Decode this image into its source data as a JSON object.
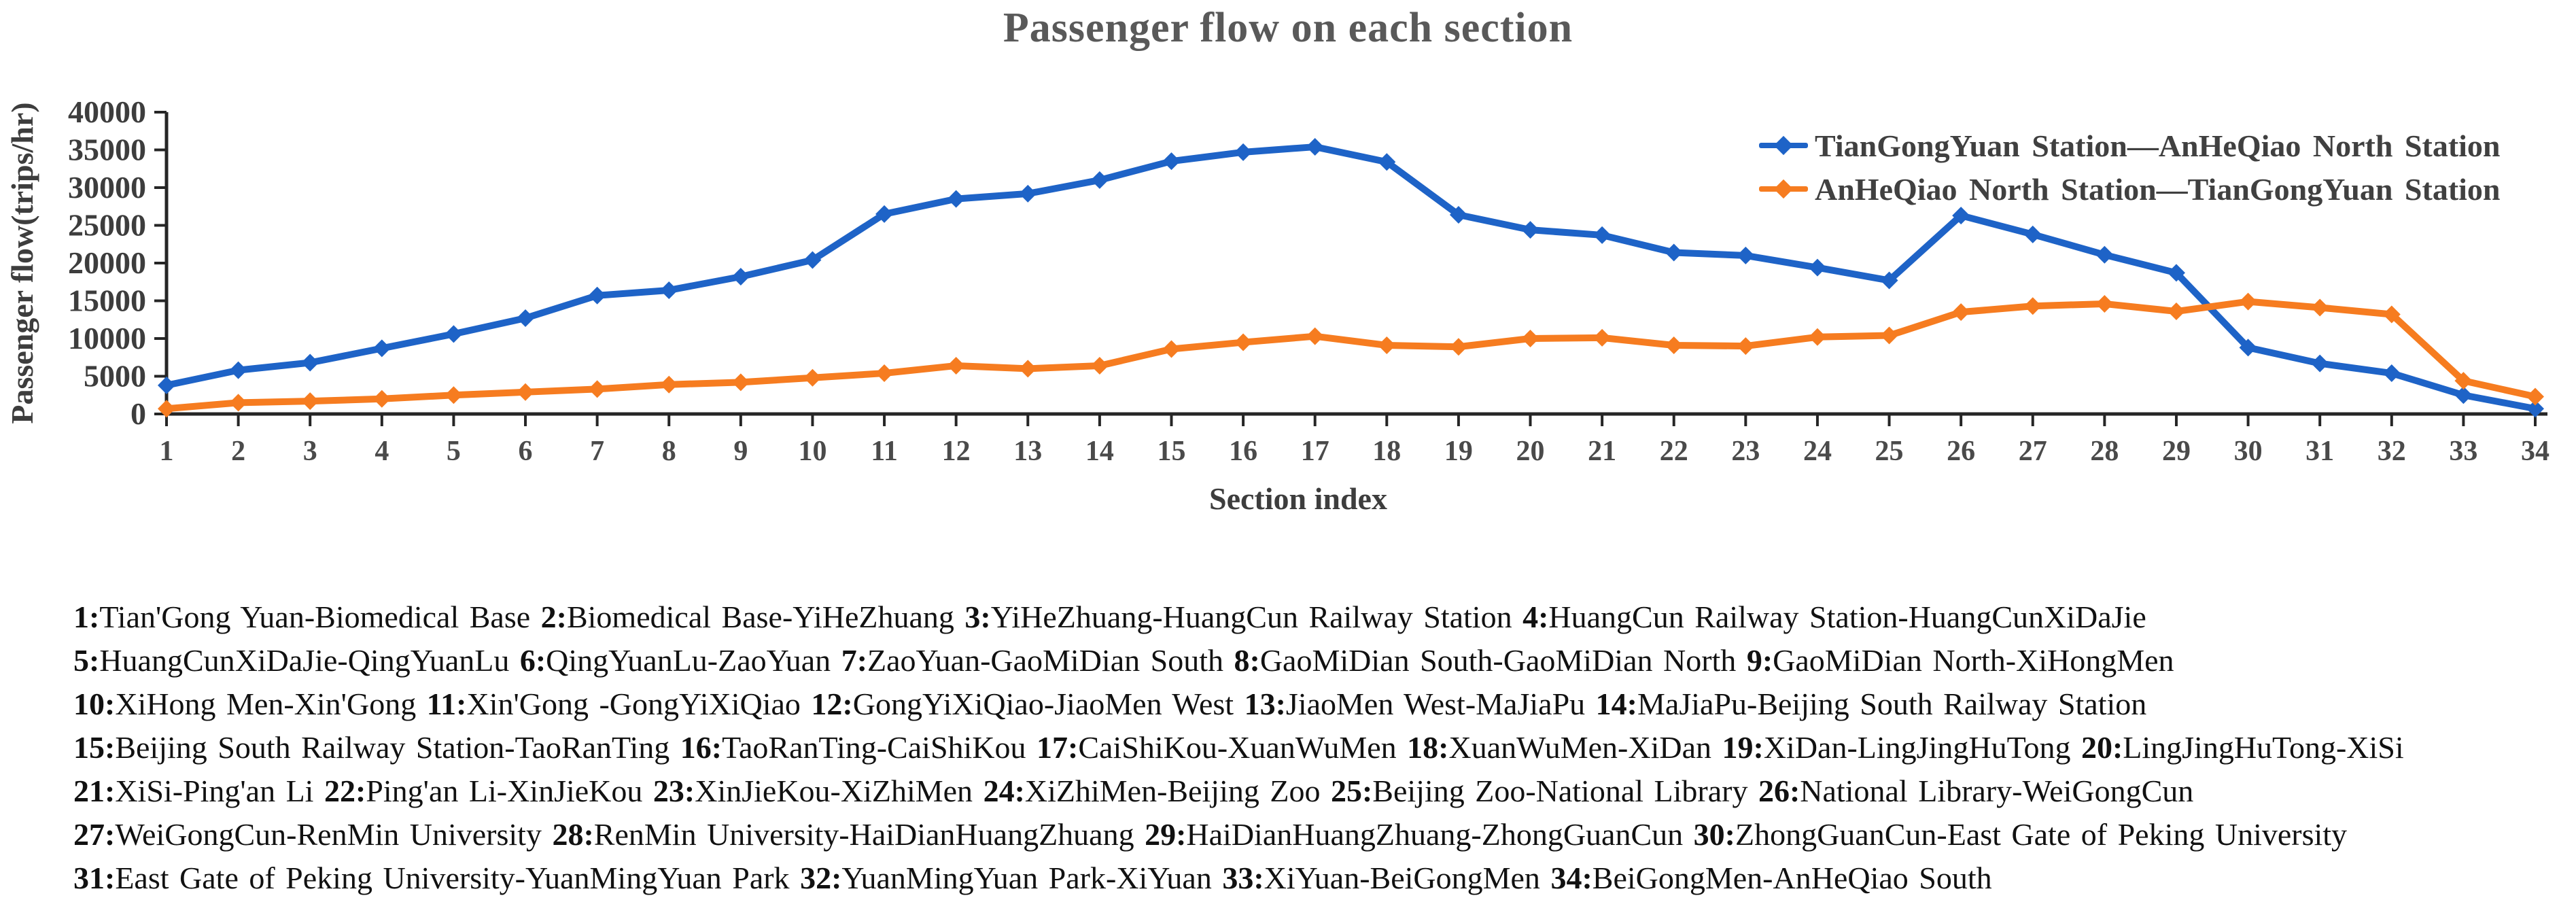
{
  "title": "Passenger flow on each section",
  "chart_data": {
    "type": "line",
    "title": "Passenger flow on each section",
    "xlabel": "Section index",
    "ylabel": "Passenger flow(trips/hr)",
    "ylim": [
      0,
      40000
    ],
    "ytick_step": 5000,
    "grid": false,
    "legend_position": "top-right",
    "x": [
      1,
      2,
      3,
      4,
      5,
      6,
      7,
      8,
      9,
      10,
      11,
      12,
      13,
      14,
      15,
      16,
      17,
      18,
      19,
      20,
      21,
      22,
      23,
      24,
      25,
      26,
      27,
      28,
      29,
      30,
      31,
      32,
      33,
      34
    ],
    "series": [
      {
        "name": "TianGongYuan Station—AnHeQiao North Station",
        "color": "#1E63C7",
        "values": [
          3800,
          5800,
          6800,
          8700,
          10600,
          12700,
          15700,
          16400,
          18200,
          20400,
          26500,
          28500,
          29200,
          31000,
          33500,
          34700,
          35400,
          33400,
          26400,
          24400,
          23700,
          21400,
          21000,
          19400,
          17700,
          26300,
          23800,
          21100,
          18700,
          8800,
          6700,
          5400,
          2500,
          700
        ]
      },
      {
        "name": "AnHeQiao North Station—TianGongYuan Station",
        "color": "#F67C20",
        "values": [
          700,
          1500,
          1700,
          2000,
          2500,
          2900,
          3300,
          3900,
          4200,
          4800,
          5400,
          6400,
          6000,
          6400,
          8600,
          9500,
          10300,
          9100,
          8900,
          10000,
          10100,
          9100,
          9000,
          10200,
          10400,
          13500,
          14300,
          14600,
          13600,
          14900,
          14100,
          13200,
          4400,
          2300
        ]
      }
    ]
  },
  "sections": {
    "lines": [
      [
        {
          "num": "1",
          "name": "Tian'Gong Yuan-Biomedical Base"
        },
        {
          "num": "2",
          "name": "Biomedical Base-YiHeZhuang"
        },
        {
          "num": "3",
          "name": "YiHeZhuang-HuangCun Railway Station"
        },
        {
          "num": "4",
          "name": "HuangCun Railway Station-HuangCunXiDaJie"
        }
      ],
      [
        {
          "num": "5",
          "name": "HuangCunXiDaJie-QingYuanLu"
        },
        {
          "num": "6",
          "name": "QingYuanLu-ZaoYuan"
        },
        {
          "num": "7",
          "name": "ZaoYuan-GaoMiDian South"
        },
        {
          "num": "8",
          "name": "GaoMiDian South-GaoMiDian North"
        },
        {
          "num": "9",
          "name": "GaoMiDian North-XiHongMen"
        }
      ],
      [
        {
          "num": "10",
          "name": "XiHong Men-Xin'Gong"
        },
        {
          "num": "11",
          "name": "Xin'Gong -GongYiXiQiao"
        },
        {
          "num": "12",
          "name": "GongYiXiQiao-JiaoMen West"
        },
        {
          "num": "13",
          "name": "JiaoMen West-MaJiaPu"
        },
        {
          "num": "14",
          "name": "MaJiaPu-Beijing South Railway Station"
        }
      ],
      [
        {
          "num": "15",
          "name": "Beijing South Railway Station-TaoRanTing"
        },
        {
          "num": "16",
          "name": "TaoRanTing-CaiShiKou"
        },
        {
          "num": "17",
          "name": "CaiShiKou-XuanWuMen"
        },
        {
          "num": "18",
          "name": "XuanWuMen-XiDan"
        },
        {
          "num": "19",
          "name": "XiDan-LingJingHuTong"
        },
        {
          "num": "20",
          "name": "LingJingHuTong-XiSi"
        }
      ],
      [
        {
          "num": "21",
          "name": "XiSi-Ping'an Li"
        },
        {
          "num": "22",
          "name": "Ping'an Li-XinJieKou"
        },
        {
          "num": "23",
          "name": "XinJieKou-XiZhiMen"
        },
        {
          "num": "24",
          "name": "XiZhiMen-Beijing Zoo"
        },
        {
          "num": "25",
          "name": "Beijing Zoo-National Library"
        },
        {
          "num": "26",
          "name": "National Library-WeiGongCun"
        }
      ],
      [
        {
          "num": "27",
          "name": "WeiGongCun-RenMin University"
        },
        {
          "num": "28",
          "name": "RenMin University-HaiDianHuangZhuang"
        },
        {
          "num": "29",
          "name": "HaiDianHuangZhuang-ZhongGuanCun"
        },
        {
          "num": "30",
          "name": "ZhongGuanCun-East Gate of Peking University"
        }
      ],
      [
        {
          "num": "31",
          "name": "East Gate of Peking University-YuanMingYuan Park"
        },
        {
          "num": "32",
          "name": "YuanMingYuan Park-XiYuan"
        },
        {
          "num": "33",
          "name": "XiYuan-BeiGongMen"
        },
        {
          "num": "34",
          "name": "BeiGongMen-AnHeQiao South"
        }
      ]
    ]
  }
}
